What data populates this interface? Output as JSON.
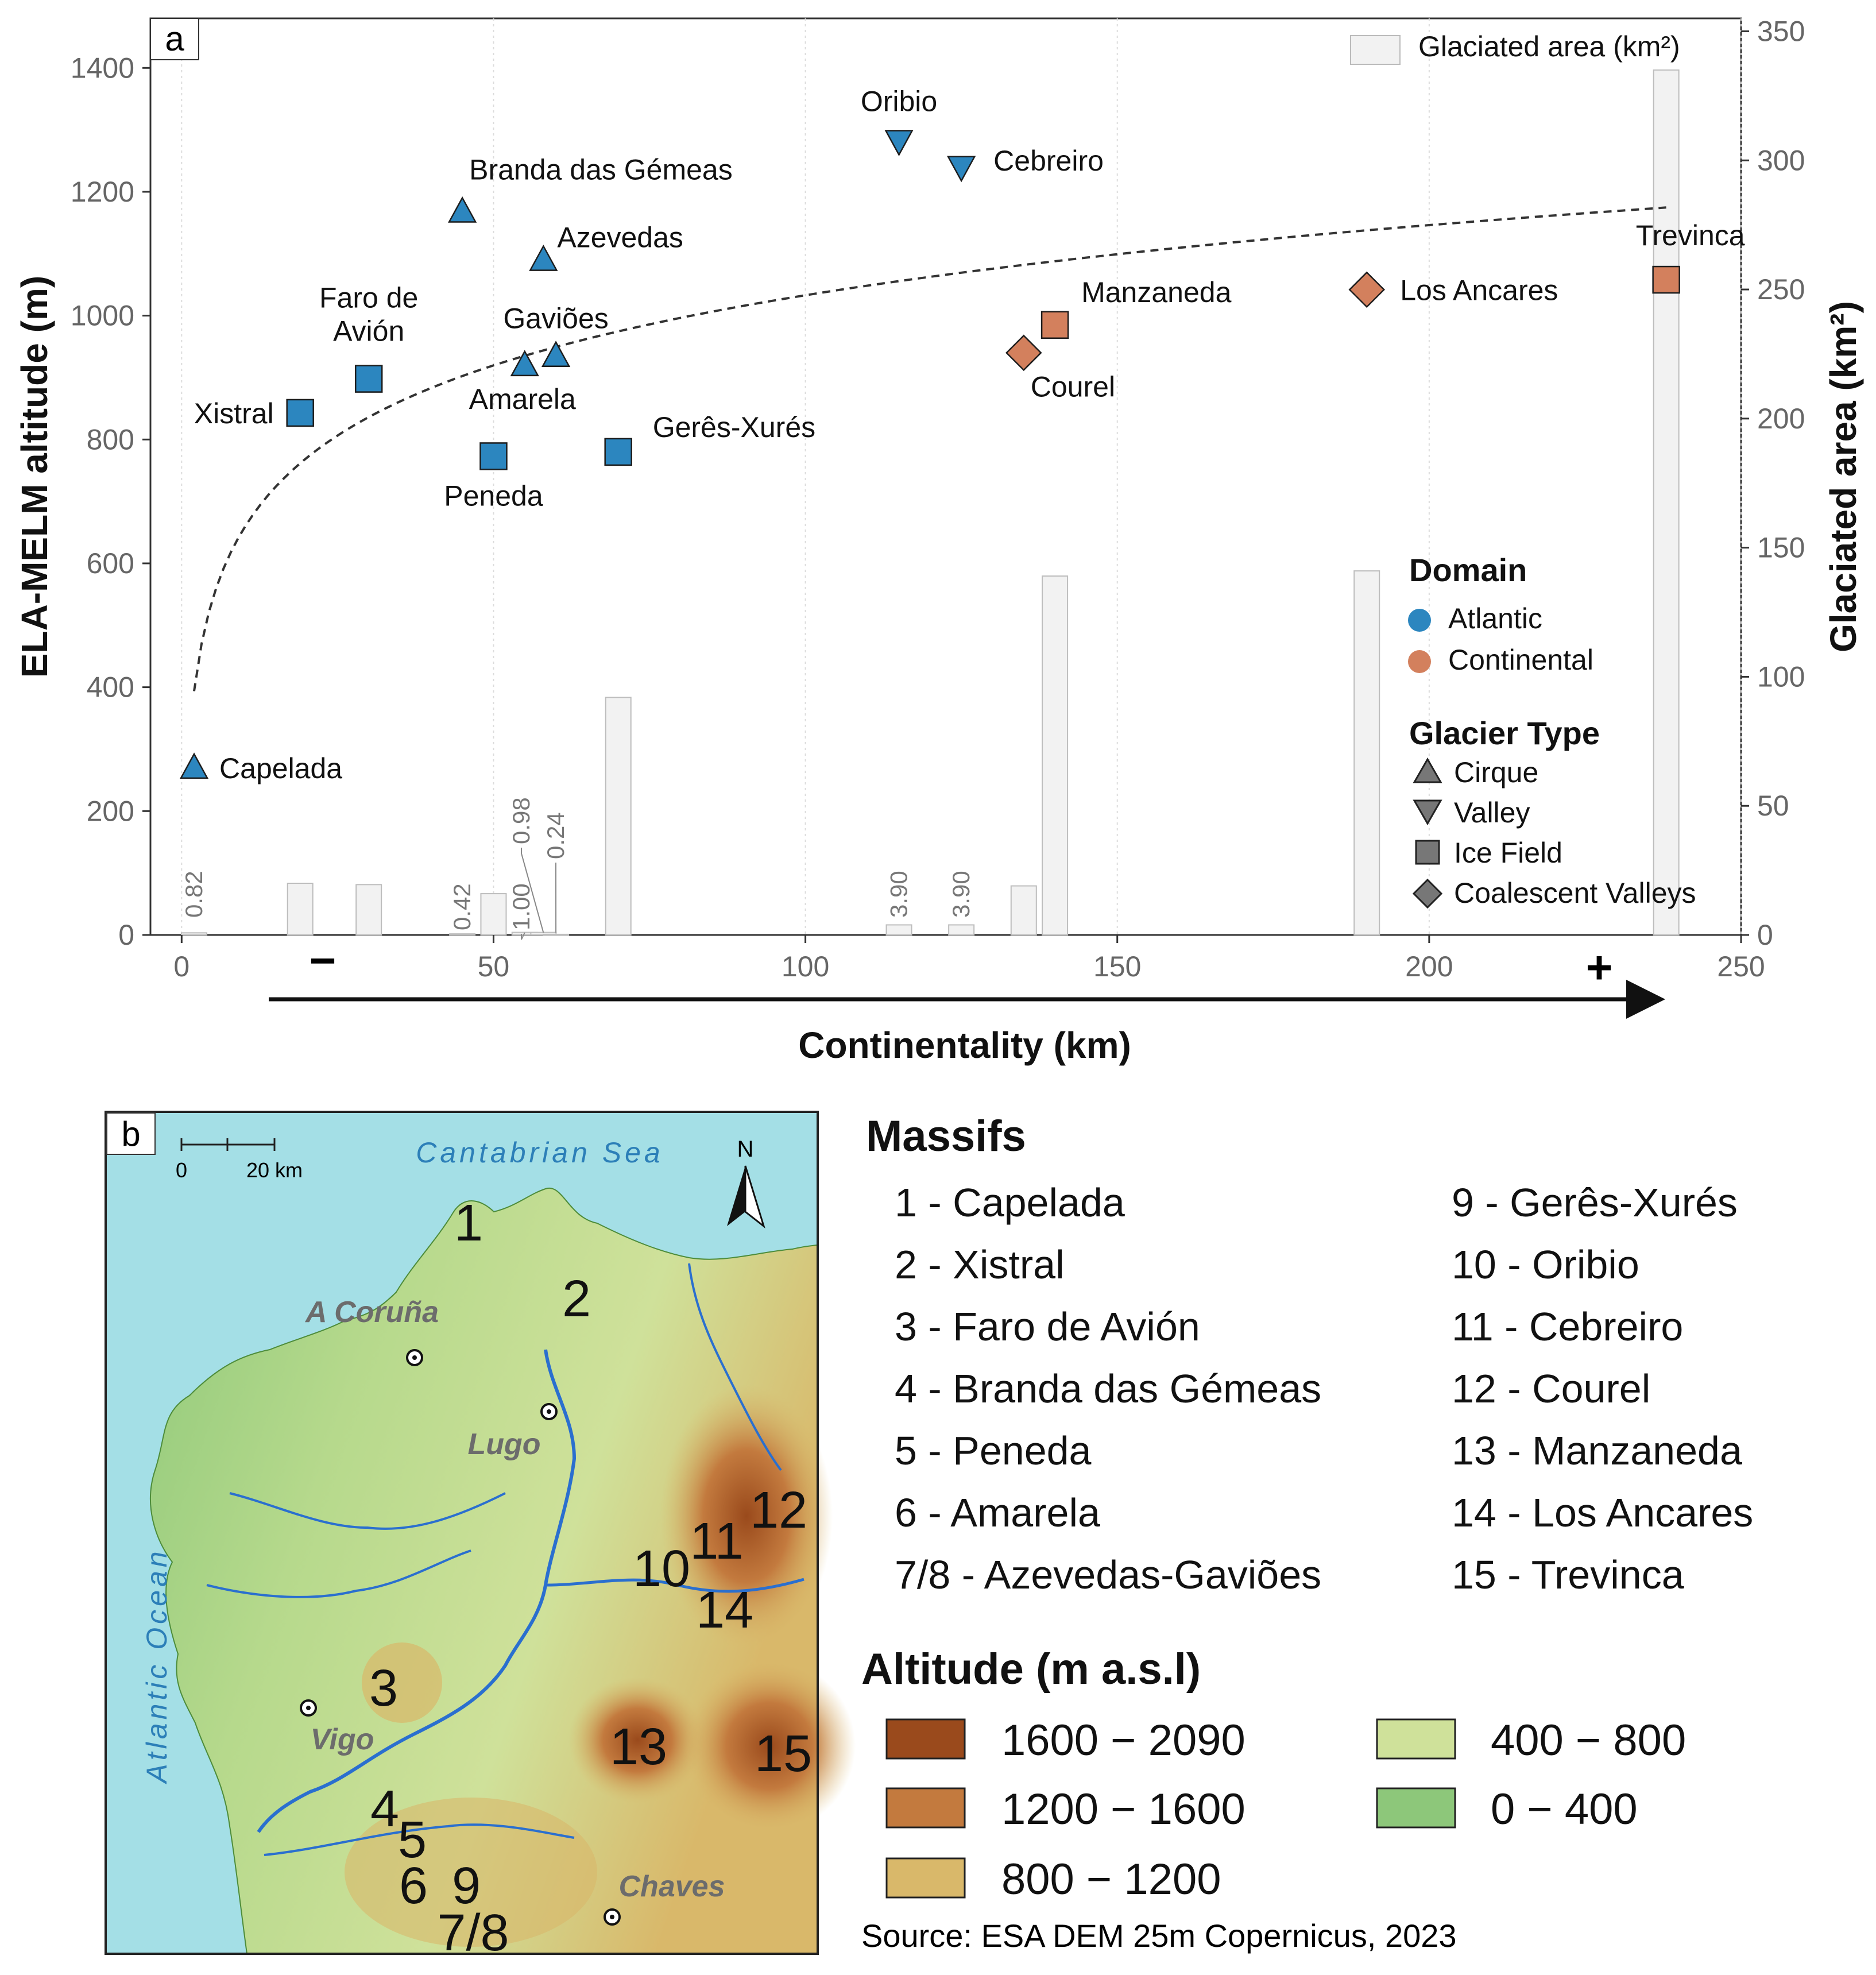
{
  "panel_a": {
    "label": "a",
    "legend_bar_label": "Glaciated area (km²)",
    "domain_title": "Domain",
    "domains": [
      {
        "name": "Atlantic",
        "color": "#2c86bf"
      },
      {
        "name": "Continental",
        "color": "#d3805d"
      }
    ],
    "type_title": "Glacier Type",
    "types": [
      {
        "name": "Cirque",
        "shape": "triangle-up"
      },
      {
        "name": "Valley",
        "shape": "triangle-down"
      },
      {
        "name": "Ice Field",
        "shape": "square"
      },
      {
        "name": "Coalescent Valleys",
        "shape": "diamond"
      }
    ],
    "direction_minus": "−",
    "direction_plus": "+"
  },
  "chart_data": {
    "type": "scatter",
    "xlabel": "Continentality (km)",
    "ylabel": "ELA-MELM altitude (m)",
    "y2label": "Glaciated area (km²)",
    "xlim": [
      -5,
      250
    ],
    "ylim": [
      0,
      1480
    ],
    "y2lim": [
      0,
      355
    ],
    "xticks": [
      0,
      50,
      100,
      150,
      200,
      250
    ],
    "yticks": [
      0,
      200,
      400,
      600,
      800,
      1000,
      1200,
      1400
    ],
    "y2ticks": [
      0,
      50,
      100,
      150,
      200,
      250,
      300,
      350
    ],
    "grid": "vertical",
    "legend_position": "right",
    "trend_line": {
      "style": "dashed",
      "kind": "logarithmic",
      "x_range": [
        2,
        238
      ]
    },
    "points": [
      {
        "name": "Capelada",
        "x": 2,
        "y": 270,
        "type": "Cirque",
        "domain": "Atlantic"
      },
      {
        "name": "Xistral",
        "x": 19,
        "y": 843,
        "type": "Ice Field",
        "domain": "Atlantic"
      },
      {
        "name": "Faro de Avión",
        "x": 30,
        "y": 898,
        "type": "Ice Field",
        "domain": "Atlantic"
      },
      {
        "name": "Branda das Gémeas",
        "x": 45,
        "y": 1168,
        "type": "Cirque",
        "domain": "Atlantic"
      },
      {
        "name": "Peneda",
        "x": 50,
        "y": 773,
        "type": "Ice Field",
        "domain": "Atlantic"
      },
      {
        "name": "Amarela",
        "x": 55,
        "y": 920,
        "type": "Cirque",
        "domain": "Atlantic"
      },
      {
        "name": "Azevedas",
        "x": 58,
        "y": 1090,
        "type": "Cirque",
        "domain": "Atlantic"
      },
      {
        "name": "Gaviões",
        "x": 60,
        "y": 935,
        "type": "Cirque",
        "domain": "Atlantic"
      },
      {
        "name": "Gerês-Xurés",
        "x": 70,
        "y": 780,
        "type": "Ice Field",
        "domain": "Atlantic"
      },
      {
        "name": "Oribio",
        "x": 115,
        "y": 1282,
        "type": "Valley",
        "domain": "Atlantic"
      },
      {
        "name": "Cebreiro",
        "x": 125,
        "y": 1240,
        "type": "Valley",
        "domain": "Atlantic"
      },
      {
        "name": "Courel",
        "x": 135,
        "y": 940,
        "type": "Coalescent Valleys",
        "domain": "Continental"
      },
      {
        "name": "Manzaneda",
        "x": 140,
        "y": 985,
        "type": "Ice Field",
        "domain": "Continental"
      },
      {
        "name": "Los Ancares",
        "x": 190,
        "y": 1042,
        "type": "Coalescent Valleys",
        "domain": "Continental"
      },
      {
        "name": "Trevinca",
        "x": 238,
        "y": 1058,
        "type": "Ice Field",
        "domain": "Continental"
      }
    ],
    "bars": [
      {
        "x": 2,
        "area": 0.82,
        "label": "0.82"
      },
      {
        "x": 19,
        "area": 20,
        "label": ""
      },
      {
        "x": 30,
        "area": 19.5,
        "label": ""
      },
      {
        "x": 45,
        "area": 0.42,
        "label": "0.42"
      },
      {
        "x": 50,
        "area": 16,
        "label": ""
      },
      {
        "x": 55,
        "area": 1.0,
        "label": "1.00"
      },
      {
        "x": 58,
        "area": 0.98,
        "label": "0.98"
      },
      {
        "x": 60,
        "area": 0.24,
        "label": "0.24"
      },
      {
        "x": 70,
        "area": 92,
        "label": ""
      },
      {
        "x": 115,
        "area": 3.9,
        "label": "3.90"
      },
      {
        "x": 125,
        "area": 3.9,
        "label": "3.90"
      },
      {
        "x": 135,
        "area": 19,
        "label": ""
      },
      {
        "x": 140,
        "area": 139,
        "label": ""
      },
      {
        "x": 190,
        "area": 141,
        "label": ""
      },
      {
        "x": 238,
        "area": 335,
        "label": ""
      }
    ]
  },
  "panel_b": {
    "label": "b",
    "scale_zero": "0",
    "scale_end": "20 km",
    "north": "N",
    "seas": {
      "north": "Cantabrian Sea",
      "west": "Atlantic Ocean"
    },
    "cities": [
      "A Coruña",
      "Lugo",
      "Vigo",
      "Chaves"
    ],
    "map_numbers": [
      "1",
      "2",
      "3",
      "4",
      "5",
      "6",
      "9",
      "7/8",
      "10",
      "11",
      "12",
      "13",
      "14",
      "15"
    ]
  },
  "massifs": {
    "title": "Massifs",
    "col1": [
      "1 - Capelada",
      "2 - Xistral",
      "3 - Faro de Avión",
      "4 - Branda das Gémeas",
      "5 - Peneda",
      "6 - Amarela",
      "7/8 - Azevedas-Gaviões"
    ],
    "col2": [
      "9 - Gerês-Xurés",
      "10 - Oribio",
      "11 - Cebreiro",
      "12 - Courel",
      "13 - Manzaneda",
      "14 - Los Ancares",
      "15 - Trevinca"
    ]
  },
  "altitude_legend": {
    "title": "Altitude (m a.s.l)",
    "classes": [
      {
        "label": "1600 − 2090",
        "color": "#9a4a1c"
      },
      {
        "label": "1200 − 1600",
        "color": "#c37a3e"
      },
      {
        "label": "800 − 1200",
        "color": "#d9b86a"
      },
      {
        "label": "400 − 800",
        "color": "#cfe19a"
      },
      {
        "label": "0 − 400",
        "color": "#8dc77a"
      }
    ],
    "source": "Source: ESA DEM 25m Copernicus, 2023"
  }
}
